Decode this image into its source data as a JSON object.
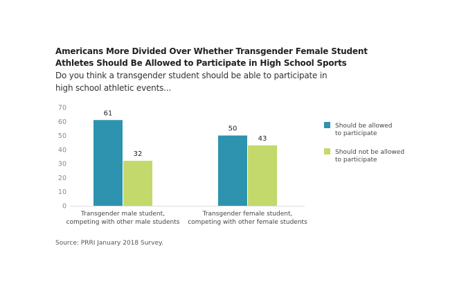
{
  "chart_data": {
    "type": "bar",
    "title": "Americans More Divided Over Whether Transgender Female Student Athletes Should Be Allowed to Participate in High School Sports",
    "subtitle": "Do you think a transgender student should be able to participate in high school athletic events...",
    "categories": [
      [
        "Transgender male student,",
        "competing with other male students"
      ],
      [
        "Transgender female student,",
        "competing with other female students"
      ]
    ],
    "series": [
      {
        "name": [
          "Should be allowed",
          "to participate"
        ],
        "color": "#2e93ae",
        "values": [
          61,
          50
        ]
      },
      {
        "name": [
          "Should not be allowed",
          "to participate"
        ],
        "color": "#c3d96b",
        "values": [
          32,
          43
        ]
      }
    ],
    "yticks": [
      0,
      10,
      20,
      30,
      40,
      50,
      60,
      70
    ],
    "ylim": [
      0,
      70
    ],
    "xlabel": "",
    "ylabel": "",
    "grid": false,
    "legend": "right",
    "source": "Source: PRRI January 2018 Survey."
  }
}
